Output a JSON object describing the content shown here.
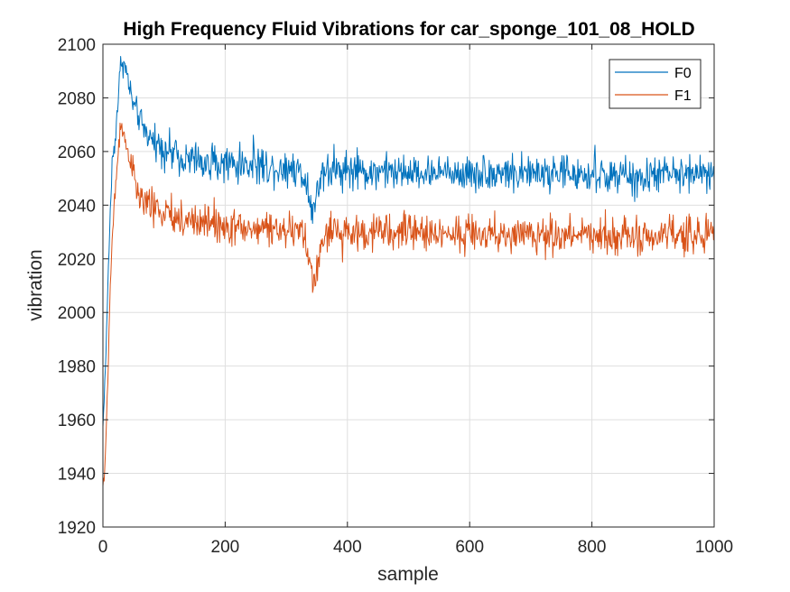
{
  "chart_data": {
    "type": "line",
    "title": "High Frequency Fluid Vibrations for car_sponge_101_08_HOLD",
    "xlabel": "sample",
    "ylabel": "vibration",
    "xlim": [
      0,
      1000
    ],
    "ylim": [
      1920,
      2100
    ],
    "xticks": [
      0,
      200,
      400,
      600,
      800,
      1000
    ],
    "yticks": [
      1920,
      1940,
      1960,
      1980,
      2000,
      2020,
      2040,
      2060,
      2080,
      2100
    ],
    "grid": true,
    "legend_position": "top-right",
    "series": [
      {
        "name": "F0",
        "color": "#0072BD",
        "x": [
          0,
          5,
          10,
          15,
          20,
          25,
          30,
          35,
          40,
          45,
          50,
          55,
          60,
          70,
          80,
          90,
          100,
          110,
          120,
          130,
          140,
          150,
          160,
          180,
          200,
          220,
          240,
          260,
          280,
          300,
          310,
          320,
          330,
          335,
          340,
          345,
          350,
          355,
          360,
          370,
          380,
          400,
          420,
          450,
          480,
          500,
          520,
          550,
          580,
          600,
          620,
          650,
          680,
          700,
          720,
          750,
          780,
          800,
          820,
          850,
          870,
          880,
          900,
          920,
          940,
          960,
          980,
          1000
        ],
        "y": [
          1957,
          1985,
          2025,
          2055,
          2065,
          2080,
          2095,
          2092,
          2088,
          2082,
          2077,
          2075,
          2072,
          2068,
          2066,
          2064,
          2061,
          2060,
          2059,
          2058,
          2058,
          2057,
          2056,
          2056,
          2056,
          2055,
          2055,
          2055,
          2054,
          2054,
          2054,
          2053,
          2050,
          2048,
          2042,
          2037,
          2045,
          2050,
          2053,
          2053,
          2053,
          2053,
          2052,
          2053,
          2052,
          2052,
          2052,
          2052,
          2052,
          2052,
          2052,
          2052,
          2052,
          2052,
          2052,
          2052,
          2051,
          2051,
          2051,
          2051,
          2050,
          2049,
          2051,
          2052,
          2051,
          2052,
          2052,
          2050
        ]
      },
      {
        "name": "F1",
        "color": "#D95319",
        "x": [
          0,
          3,
          8,
          12,
          16,
          20,
          25,
          30,
          35,
          40,
          45,
          50,
          55,
          60,
          70,
          80,
          90,
          100,
          110,
          120,
          140,
          160,
          180,
          200,
          220,
          240,
          260,
          280,
          300,
          310,
          320,
          330,
          335,
          340,
          345,
          350,
          355,
          360,
          370,
          380,
          400,
          420,
          450,
          480,
          500,
          520,
          550,
          580,
          600,
          620,
          650,
          680,
          700,
          720,
          750,
          780,
          800,
          820,
          850,
          870,
          880,
          900,
          920,
          940,
          960,
          980,
          1000
        ],
        "y": [
          1935,
          1940,
          1975,
          2010,
          2030,
          2045,
          2060,
          2073,
          2065,
          2060,
          2058,
          2052,
          2045,
          2043,
          2041,
          2040,
          2038,
          2037,
          2036,
          2035,
          2034,
          2034,
          2033,
          2032,
          2032,
          2031,
          2031,
          2031,
          2031,
          2030,
          2030,
          2028,
          2022,
          2016,
          2011,
          2015,
          2022,
          2027,
          2030,
          2030,
          2030,
          2030,
          2030,
          2030,
          2030,
          2030,
          2029,
          2030,
          2030,
          2029,
          2029,
          2029,
          2029,
          2029,
          2029,
          2029,
          2029,
          2029,
          2029,
          2028,
          2026,
          2028,
          2029,
          2029,
          2030,
          2029,
          2028
        ]
      }
    ]
  }
}
